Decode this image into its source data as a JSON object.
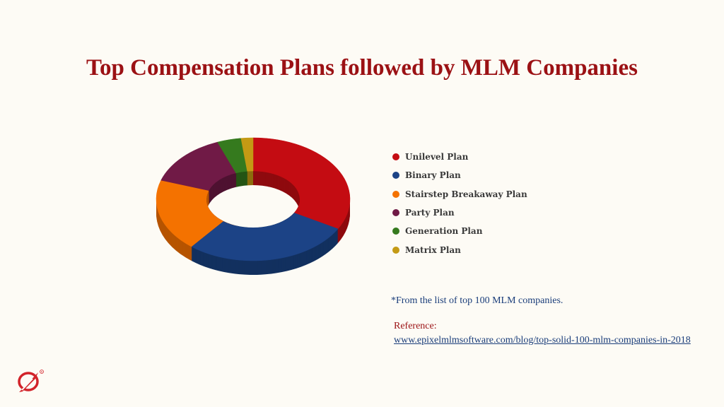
{
  "page": {
    "title": "Top Compensation Plans followed by MLM Companies",
    "footnote": "*From the list of top 100 MLM companies.",
    "reference_label": "Reference:",
    "reference_link": "www.epixelmlmsoftware.com/blog/top-solid-100-mlm-companies-in-2018",
    "logo_icon": "epixel-logo-icon"
  },
  "chart_data": {
    "type": "pie",
    "title": "Top Compensation Plans followed by MLM Companies",
    "legend_position": "right",
    "categories": [
      "Unilevel Plan",
      "Binary Plan",
      "Stairstep Breakaway Plan",
      "Party Plan",
      "Generation Plan",
      "Matrix Plan"
    ],
    "values": [
      33,
      28,
      19,
      14,
      4,
      2
    ],
    "colors": [
      "#c40c12",
      "#1c4386",
      "#f47200",
      "#701a46",
      "#357a1e",
      "#c49a14"
    ],
    "shadow_colors": [
      "#8e0a0e",
      "#12305f",
      "#b65400",
      "#4e1231",
      "#245414",
      "#8c6d0d"
    ],
    "donut": true
  }
}
